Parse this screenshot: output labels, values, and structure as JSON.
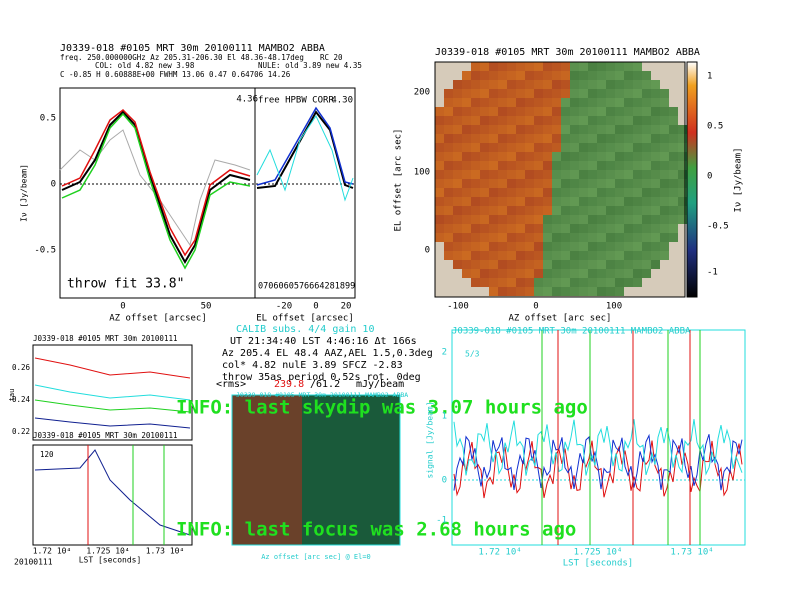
{
  "top_left": {
    "title": "J0339-018      #0105 MRT 30m  20100111 MAMBO2 ABBA",
    "line1": "freq. 250.000000GHz  Az 205.31-206.30 El 48.36-48.17deg",
    "rc": "RC   20",
    "col": "COL: old    4.82 new    3.98",
    "nule": "NULE: old    3.89 new    4.35",
    "line3": "C    -0.85    H   0.60888E+00   FWHM   13.06   0.47   0.64706   14.26",
    "yticks": [
      "0.5",
      "0",
      "-0.5"
    ],
    "ylabel": "Iν [Jy/beam]",
    "xticks": [
      "0",
      "50"
    ],
    "xlabel": "AZ offset [arcsec]",
    "annotation": "throw fit 33.8\"",
    "el_panel": {
      "label": "free HPBW CORR",
      "left_value": "4.36",
      "right_value": "4.30",
      "xticks": [
        "-20",
        "0",
        "20"
      ],
      "xlabel": "EL offset [arcsec]",
      "code": "0706060576664281899"
    }
  },
  "top_right": {
    "title": "J0339-018       #0105 MRT 30m  20100111 MAMBO2 ABBA",
    "yticks": [
      "200",
      "100",
      "0"
    ],
    "ylabel": "EL offset [arc sec]",
    "xticks": [
      "-100",
      "0",
      "100"
    ],
    "xlabel": "AZ offset [arc sec]",
    "colorbar_ticks": [
      "1",
      "0.5",
      "0",
      "-0.5",
      "-1"
    ],
    "colorbar_label": "Iν [Jy/beam]"
  },
  "status": {
    "calib": "CALIB  subs. 4/4 gain 10",
    "ut": "UT 21:34:40 LST 4:46:16 Δt 166s",
    "az": "Az 205.4  EL 48.4 AAZ,AEL 1.5,0.3deg",
    "col": "col* 4.82 nulE 3.89 SFCZ -2.83",
    "throw": "throw 35as period 0.52s rot. 0deg",
    "rms_label": "<rms>",
    "rms_value": "239.8",
    "rms_ratio": "/61.2",
    "rms_unit": "mJy/beam"
  },
  "info": [
    "INFO: last skydip was 3.07 hours ago",
    "INFO: last focus was 2.68 hours ago"
  ],
  "bottom_left": {
    "title": "J0339-018    #0105 MRT 30m   20100111",
    "subtitle": "J0339-018    #0105 MRT 30m   20100111",
    "yticks": [
      "0.26",
      "0.24",
      "0.22"
    ],
    "ylabel": "tau",
    "lower_yticks": [
      "120"
    ],
    "xticks": [
      "1.72 10⁴",
      "1.725 10⁴",
      "1.73 10⁴"
    ],
    "xlabel": "LST [seconds]",
    "date": "20100111"
  },
  "middle_map": {
    "title": "J0339-018   #0105 MRT 30m   20100111 MAMBO2 ABBA",
    "xlabel": "Az offset [arc sec] @ El=0"
  },
  "bottom_right": {
    "title": "J0339-018       #0105 MRT 30m  20100111 MAMBO2 ABBA",
    "corner": "5/3",
    "yticks": [
      "2",
      "1",
      "0",
      "-1"
    ],
    "ylabel": "signal [Jy/beam]",
    "xticks": [
      "1.72 10⁴",
      "1.725 10⁴",
      "1.73 10⁴"
    ],
    "xlabel": "LST [seconds]"
  }
}
